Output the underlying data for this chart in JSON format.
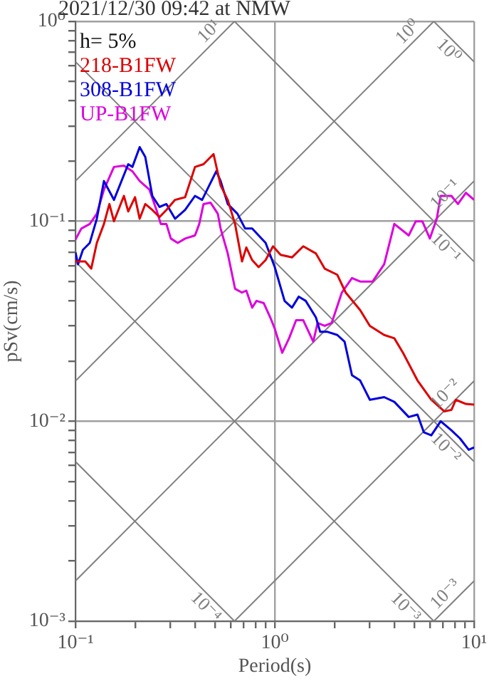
{
  "chart_data": {
    "type": "line",
    "title": "2021/12/30 09:42 at NMW",
    "xlabel": "Period(s)",
    "ylabel": "pSv(cm/s)",
    "legend_title": "h= 5%",
    "legend": "top left",
    "log": "xy",
    "grid": true,
    "xlim": [
      0.1,
      10
    ],
    "ylim": [
      0.001,
      1
    ],
    "xticks": [
      {
        "value": 0.1,
        "label": "10⁻¹"
      },
      {
        "value": 0.2,
        "label": null
      },
      {
        "value": 0.3,
        "label": null
      },
      {
        "value": 0.4,
        "label": null
      },
      {
        "value": 0.5,
        "label": null
      },
      {
        "value": 0.6,
        "label": null
      },
      {
        "value": 0.7,
        "label": null
      },
      {
        "value": 0.8,
        "label": null
      },
      {
        "value": 0.9,
        "label": null
      },
      {
        "value": 1,
        "label": "10⁰"
      },
      {
        "value": 2,
        "label": null
      },
      {
        "value": 3,
        "label": null
      },
      {
        "value": 4,
        "label": null
      },
      {
        "value": 5,
        "label": null
      },
      {
        "value": 6,
        "label": null
      },
      {
        "value": 7,
        "label": null
      },
      {
        "value": 8,
        "label": null
      },
      {
        "value": 9,
        "label": null
      },
      {
        "value": 10,
        "label": "10¹"
      }
    ],
    "yticks": [
      {
        "value": 0.001,
        "label": "10⁻³"
      },
      {
        "value": 0.002,
        "label": null
      },
      {
        "value": 0.003,
        "label": null
      },
      {
        "value": 0.004,
        "label": null
      },
      {
        "value": 0.005,
        "label": null
      },
      {
        "value": 0.006,
        "label": null
      },
      {
        "value": 0.007,
        "label": null
      },
      {
        "value": 0.008,
        "label": null
      },
      {
        "value": 0.009,
        "label": null
      },
      {
        "value": 0.01,
        "label": "10⁻²"
      },
      {
        "value": 0.02,
        "label": null
      },
      {
        "value": 0.03,
        "label": null
      },
      {
        "value": 0.04,
        "label": null
      },
      {
        "value": 0.05,
        "label": null
      },
      {
        "value": 0.06,
        "label": null
      },
      {
        "value": 0.07,
        "label": null
      },
      {
        "value": 0.08,
        "label": null
      },
      {
        "value": 0.09,
        "label": null
      },
      {
        "value": 0.1,
        "label": "10⁻¹"
      },
      {
        "value": 0.2,
        "label": null
      },
      {
        "value": 0.3,
        "label": null
      },
      {
        "value": 0.4,
        "label": null
      },
      {
        "value": 0.5,
        "label": null
      },
      {
        "value": 0.6,
        "label": null
      },
      {
        "value": 0.7,
        "label": null
      },
      {
        "value": 0.8,
        "label": null
      },
      {
        "value": 0.9,
        "label": null
      },
      {
        "value": 1,
        "label": "10⁰"
      }
    ],
    "series": [
      {
        "name": "218-B1FW",
        "color": "#dd0000",
        "x": [
          0.1,
          0.112,
          0.12,
          0.128,
          0.139,
          0.148,
          0.156,
          0.175,
          0.184,
          0.199,
          0.21,
          0.224,
          0.243,
          0.264,
          0.286,
          0.316,
          0.355,
          0.398,
          0.439,
          0.493,
          0.535,
          0.581,
          0.632,
          0.685,
          0.72,
          0.77,
          0.83,
          0.9,
          0.98,
          1.07,
          1.22,
          1.39,
          1.61,
          1.78,
          2.06,
          2.27,
          2.68,
          3.0,
          3.54,
          3.98,
          4.4,
          5.2,
          6.1,
          7.1,
          7.7,
          8.1,
          9.1,
          10
        ],
        "values": [
          0.063,
          0.063,
          0.058,
          0.078,
          0.097,
          0.122,
          0.1,
          0.134,
          0.112,
          0.132,
          0.103,
          0.122,
          0.114,
          0.105,
          0.114,
          0.128,
          0.132,
          0.187,
          0.193,
          0.217,
          0.151,
          0.128,
          0.097,
          0.063,
          0.074,
          0.064,
          0.059,
          0.064,
          0.075,
          0.068,
          0.066,
          0.075,
          0.069,
          0.058,
          0.054,
          0.044,
          0.036,
          0.03,
          0.027,
          0.026,
          0.022,
          0.016,
          0.0128,
          0.0112,
          0.0114,
          0.0128,
          0.0122,
          0.0121
        ]
      },
      {
        "name": "308-B1FW",
        "color": "#0000dd",
        "x": [
          0.1,
          0.103,
          0.109,
          0.118,
          0.128,
          0.139,
          0.156,
          0.184,
          0.193,
          0.21,
          0.224,
          0.243,
          0.264,
          0.286,
          0.316,
          0.355,
          0.398,
          0.432,
          0.469,
          0.509,
          0.535,
          0.581,
          0.65,
          0.71,
          0.77,
          0.9,
          1.0,
          1.12,
          1.22,
          1.32,
          1.43,
          1.61,
          1.69,
          1.84,
          2.06,
          2.24,
          2.44,
          2.68,
          3.0,
          3.54,
          3.98,
          4.7,
          5.2,
          5.6,
          6.1,
          6.8,
          7.7,
          8.5,
          9.4,
          10
        ],
        "values": [
          0.07,
          0.061,
          0.072,
          0.078,
          0.103,
          0.159,
          0.128,
          0.193,
          0.187,
          0.235,
          0.21,
          0.134,
          0.118,
          0.122,
          0.103,
          0.114,
          0.134,
          0.128,
          0.151,
          0.178,
          0.159,
          0.122,
          0.109,
          0.092,
          0.092,
          0.078,
          0.059,
          0.04,
          0.037,
          0.042,
          0.04,
          0.033,
          0.028,
          0.028,
          0.027,
          0.025,
          0.017,
          0.016,
          0.0128,
          0.0132,
          0.0125,
          0.0105,
          0.0108,
          0.0088,
          0.0085,
          0.01,
          0.009,
          0.0082,
          0.0072,
          0.0074
        ]
      },
      {
        "name": "UP-B1FW",
        "color": "#dd00dd",
        "x": [
          0.1,
          0.107,
          0.118,
          0.128,
          0.139,
          0.156,
          0.175,
          0.193,
          0.21,
          0.235,
          0.255,
          0.268,
          0.286,
          0.301,
          0.326,
          0.355,
          0.398,
          0.418,
          0.439,
          0.476,
          0.518,
          0.535,
          0.581,
          0.632,
          0.685,
          0.72,
          0.77,
          0.81,
          0.88,
          0.95,
          1.0,
          1.09,
          1.18,
          1.28,
          1.39,
          1.56,
          1.64,
          1.78,
          1.93,
          2.17,
          2.44,
          2.68,
          3.1,
          3.54,
          3.98,
          4.7,
          5.1,
          5.5,
          6.0,
          6.5,
          6.8,
          7.7,
          8.3,
          9.1,
          10
        ],
        "values": [
          0.081,
          0.092,
          0.097,
          0.109,
          0.144,
          0.187,
          0.19,
          0.178,
          0.159,
          0.144,
          0.114,
          0.097,
          0.097,
          0.082,
          0.078,
          0.082,
          0.085,
          0.097,
          0.122,
          0.124,
          0.109,
          0.092,
          0.069,
          0.046,
          0.044,
          0.045,
          0.037,
          0.04,
          0.039,
          0.033,
          0.029,
          0.022,
          0.026,
          0.032,
          0.032,
          0.025,
          0.031,
          0.03,
          0.031,
          0.044,
          0.052,
          0.05,
          0.05,
          0.061,
          0.097,
          0.085,
          0.1,
          0.1,
          0.082,
          0.103,
          0.134,
          0.134,
          0.122,
          0.139,
          0.128
        ]
      },
      {
        "type": "line",
        "name": "10¹",
        "color": "#808080",
        "x": [
          0.1,
          0.628
        ],
        "values": [
          0.159,
          1
        ]
      },
      {
        "type": "line",
        "name": "10⁰",
        "color": "#808080",
        "x": [
          0.1,
          6.28
        ],
        "values": [
          0.0159,
          1
        ]
      },
      {
        "type": "line",
        "name": "10⁻¹",
        "color": "#808080",
        "x": [
          0.1,
          10
        ],
        "values": [
          0.00159,
          0.159
        ]
      },
      {
        "type": "line",
        "name": "10⁻²",
        "color": "#808080",
        "x": [
          0.628,
          10
        ],
        "values": [
          0.001,
          0.0159
        ]
      },
      {
        "type": "line",
        "name": "10⁻³",
        "color": "#808080",
        "x": [
          6.28,
          10
        ],
        "values": [
          0.001,
          0.00159
        ]
      },
      {
        "type": "line",
        "name": "10⁰",
        "color": "#808080",
        "x": [
          6.28,
          10
        ],
        "values": [
          1,
          0.628
        ]
      },
      {
        "type": "line",
        "name": "10⁻¹",
        "color": "#808080",
        "x": [
          0.628,
          10
        ],
        "values": [
          1,
          0.0628
        ]
      },
      {
        "type": "line",
        "name": "10⁻²",
        "color": "#808080",
        "x": [
          0.1,
          10
        ],
        "values": [
          0.628,
          0.00628
        ]
      },
      {
        "type": "line",
        "name": "10⁻³",
        "color": "#808080",
        "x": [
          0.1,
          6.28
        ],
        "values": [
          0.0628,
          0.001
        ]
      },
      {
        "type": "line",
        "name": "10⁻⁴",
        "color": "#808080",
        "x": [
          0.1,
          0.628
        ],
        "values": [
          0.00628,
          0.001
        ]
      }
    ]
  }
}
